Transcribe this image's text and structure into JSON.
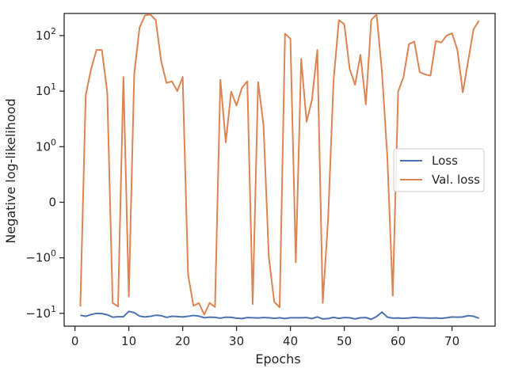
{
  "chart_data": {
    "type": "line",
    "title": "",
    "xlabel": "Epochs",
    "ylabel": "Negative log-likelihood",
    "yscale": "symlog",
    "xlim": [
      -2,
      78
    ],
    "ylim": [
      -17,
      250
    ],
    "x_ticks": [
      0,
      10,
      20,
      30,
      40,
      50,
      60,
      70
    ],
    "y_ticks": [
      {
        "value": -10,
        "label": "−10",
        "sup": "1"
      },
      {
        "value": -1,
        "label": "−10",
        "sup": "0"
      },
      {
        "value": 0,
        "label": "0",
        "sup": ""
      },
      {
        "value": 1,
        "label": "10",
        "sup": "0"
      },
      {
        "value": 10,
        "label": "10",
        "sup": "1"
      },
      {
        "value": 100,
        "label": "10",
        "sup": "2"
      }
    ],
    "grid": false,
    "legend_position": "right",
    "x": [
      1,
      2,
      3,
      4,
      5,
      6,
      7,
      8,
      9,
      10,
      11,
      12,
      13,
      14,
      15,
      16,
      17,
      18,
      19,
      20,
      21,
      22,
      23,
      24,
      25,
      26,
      27,
      28,
      29,
      30,
      31,
      32,
      33,
      34,
      35,
      36,
      37,
      38,
      39,
      40,
      41,
      42,
      43,
      44,
      45,
      46,
      47,
      48,
      49,
      50,
      51,
      52,
      53,
      54,
      55,
      56,
      57,
      58,
      59,
      60,
      61,
      62,
      63,
      64,
      65,
      66,
      67,
      68,
      69,
      70,
      71,
      72,
      73,
      74,
      75
    ],
    "series": [
      {
        "name": "Loss",
        "color": "#4c72b0",
        "values": [
          -10.8,
          -11.3,
          -10.5,
          -10.0,
          -10.1,
          -10.6,
          -11.7,
          -11.5,
          -11.5,
          -9.2,
          -9.7,
          -11.2,
          -11.6,
          -11.3,
          -10.8,
          -11.0,
          -11.8,
          -11.3,
          -11.4,
          -11.6,
          -11.3,
          -10.9,
          -11.2,
          -12.0,
          -11.7,
          -11.8,
          -12.2,
          -11.7,
          -11.8,
          -12.2,
          -12.4,
          -11.9,
          -12.0,
          -12.1,
          -11.9,
          -12.0,
          -12.3,
          -12.0,
          -12.4,
          -12.0,
          -12.0,
          -12.0,
          -11.9,
          -12.4,
          -11.6,
          -12.6,
          -12.4,
          -11.8,
          -12.3,
          -11.9,
          -12.0,
          -12.6,
          -12.0,
          -11.9,
          -12.8,
          -11.4,
          -9.5,
          -11.7,
          -12.2,
          -12.1,
          -12.3,
          -12.1,
          -11.8,
          -12.0,
          -12.1,
          -12.2,
          -12.1,
          -12.3,
          -12.0,
          -11.6,
          -11.7,
          -11.6,
          -11.0,
          -11.3,
          -12.2
        ]
      },
      {
        "name": "Val. loss",
        "color": "#dd8452",
        "values": [
          -7.5,
          8.5,
          25,
          55,
          55,
          9.5,
          -6.5,
          -7.5,
          18,
          -5,
          20,
          140,
          230,
          240,
          190,
          35,
          14,
          15,
          10,
          18,
          -2,
          -7.3,
          -6.5,
          -10.5,
          -6.5,
          -7.7,
          16,
          1.2,
          9.8,
          5.5,
          11.5,
          15.0,
          -6.8,
          14.5,
          2.5,
          -1.0,
          -6.2,
          -7.8,
          108,
          88,
          -1.2,
          38,
          2.8,
          7.0,
          55,
          -6.5,
          -0.3,
          15,
          190,
          160,
          25,
          13,
          45,
          5.8,
          190,
          240,
          22,
          0.8,
          -4.8,
          9.8,
          18,
          70,
          78,
          22,
          20,
          19,
          80,
          75,
          100,
          110,
          55,
          9.5,
          35,
          130,
          185
        ]
      }
    ]
  }
}
